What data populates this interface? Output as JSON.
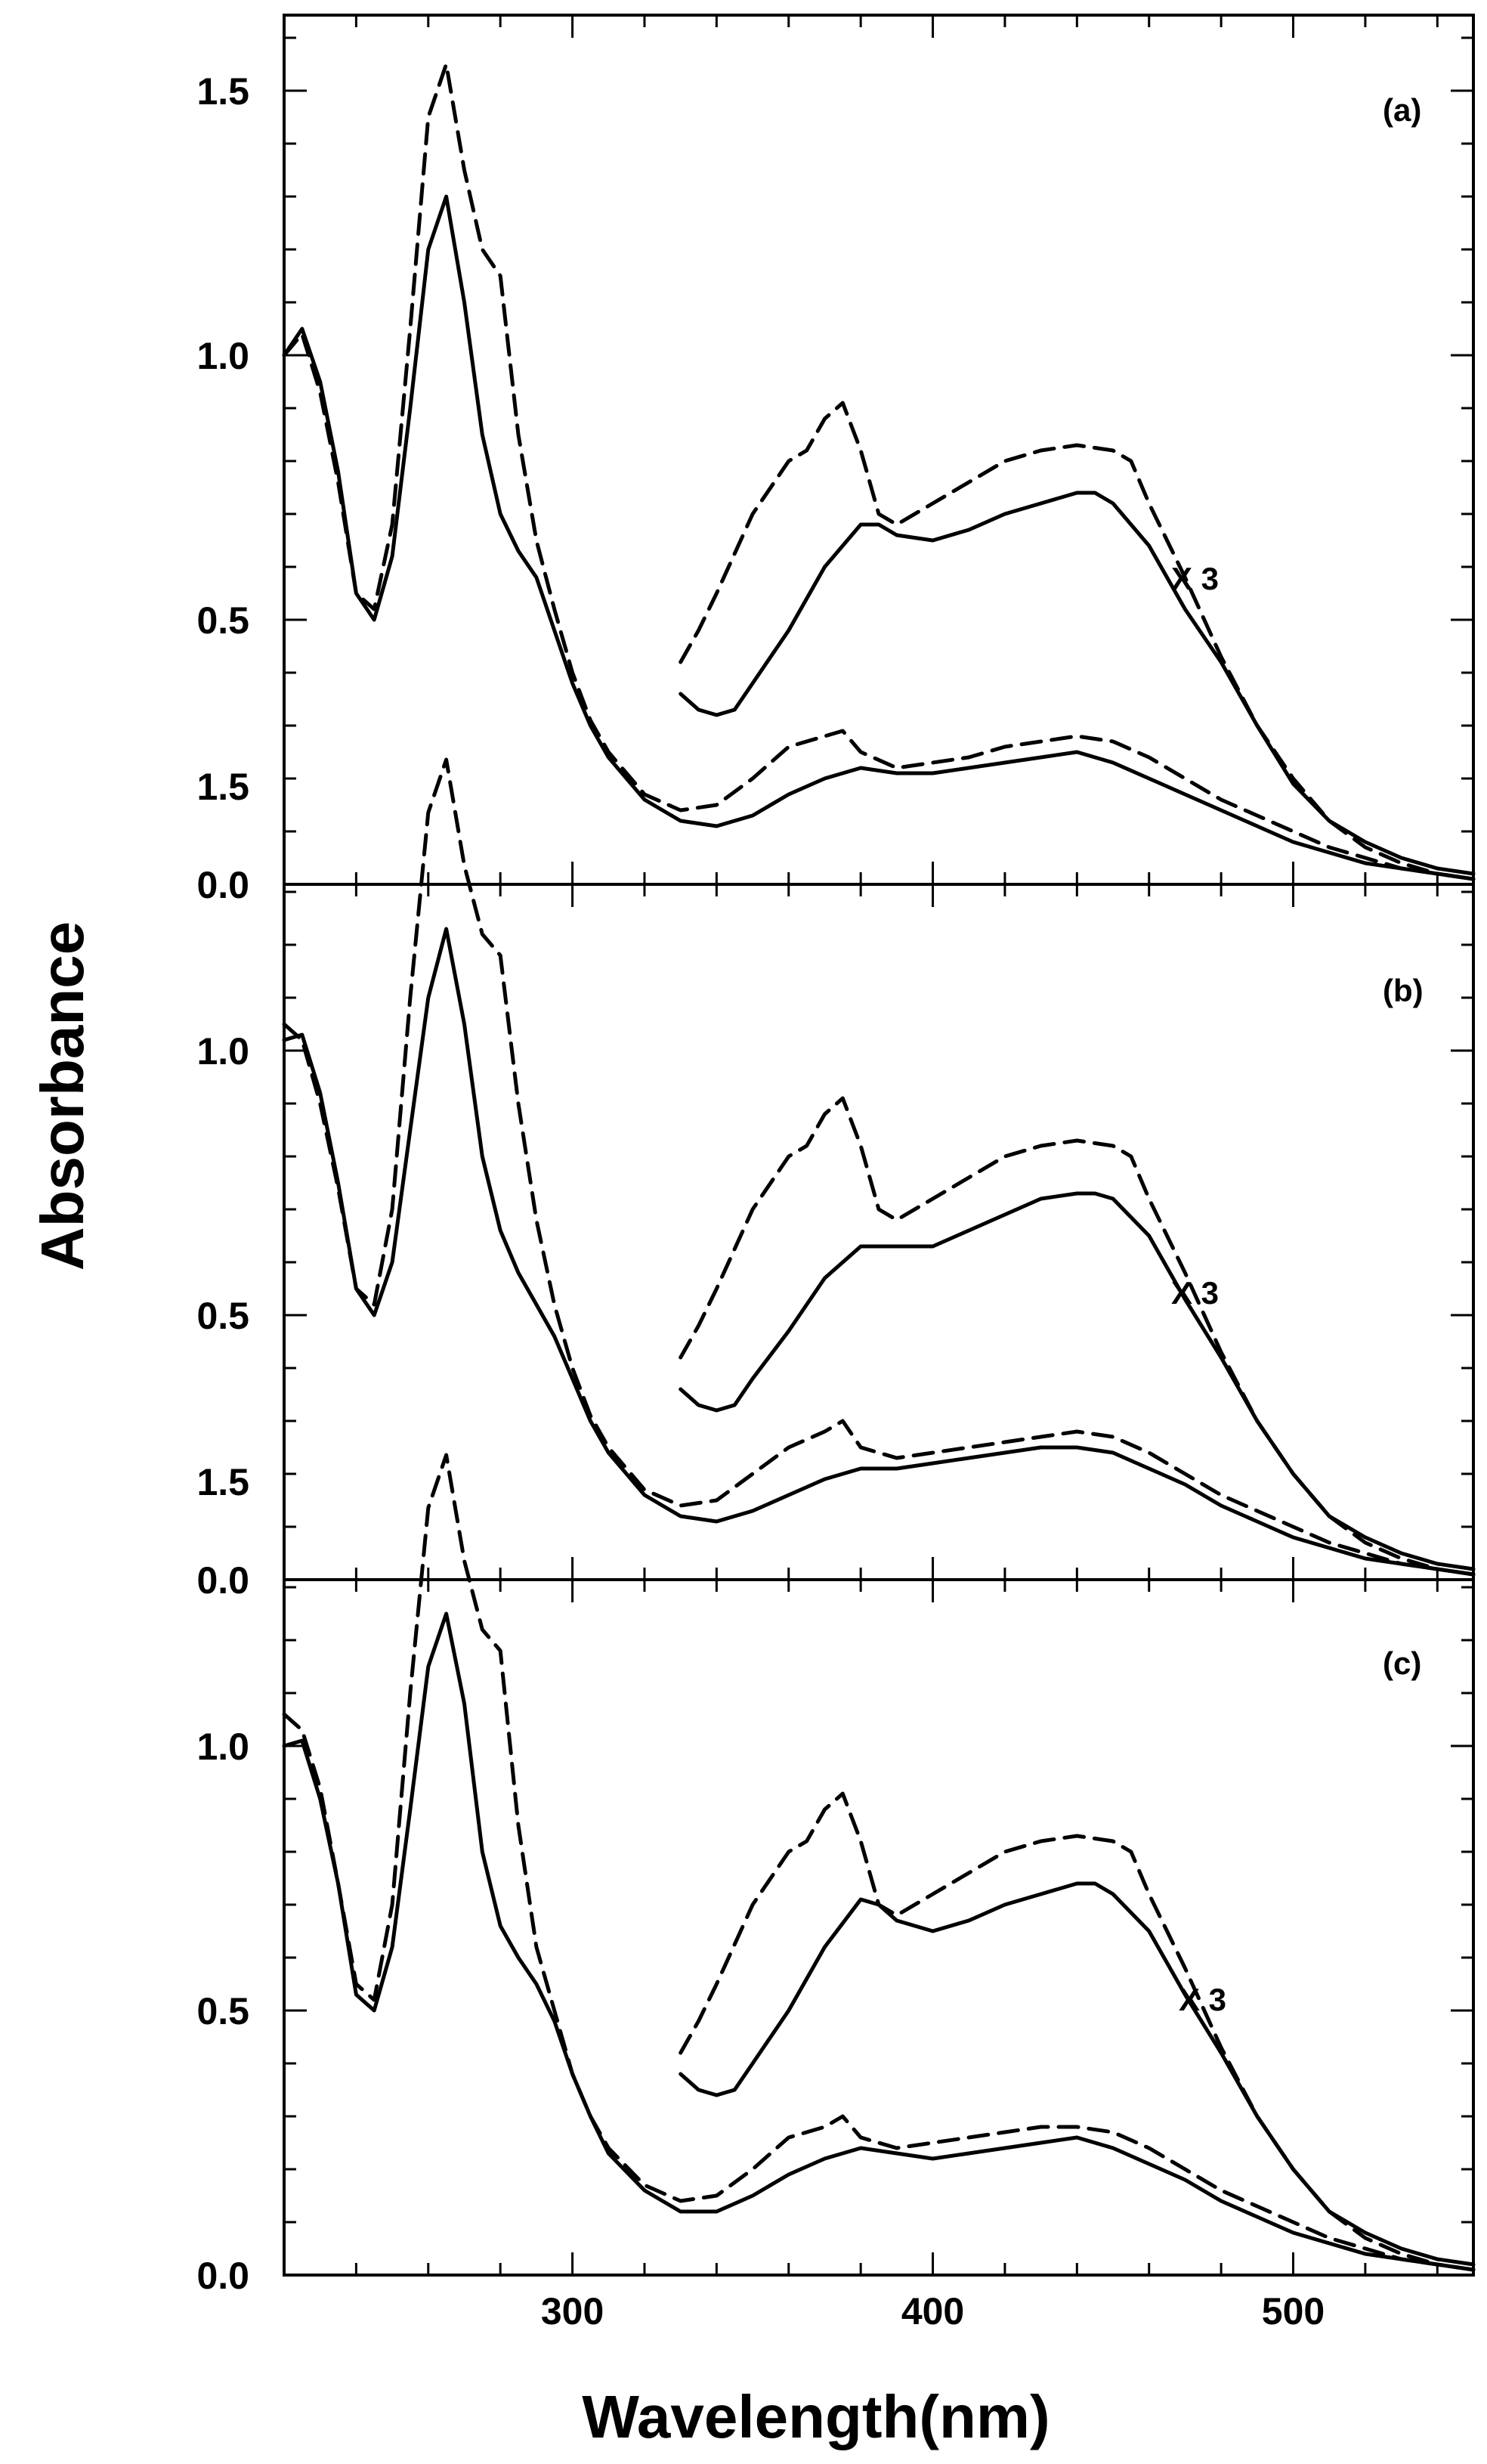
{
  "chart_data": {
    "type": "line",
    "xlabel": "Wavelength(nm)",
    "ylabel": "Absorbance",
    "xlim": [
      220,
      550
    ],
    "ylim": [
      0,
      1.65
    ],
    "x_ticks": [
      300,
      400,
      500
    ],
    "y_ticks": [
      "0.0",
      "0.5",
      "1.0",
      "1.5"
    ],
    "y_tick_values": [
      0.0,
      0.5,
      1.0,
      1.5
    ],
    "annotation": "X 3",
    "line_color": "#000000",
    "panels": [
      {
        "label": "(a)",
        "annotation": "X 3",
        "series": [
          {
            "name": "solid",
            "style": "solid",
            "x": [
              220,
              225,
              230,
              235,
              240,
              245,
              250,
              255,
              260,
              265,
              270,
              275,
              280,
              285,
              290,
              295,
              300,
              305,
              310,
              320,
              330,
              340,
              350,
              360,
              370,
              380,
              390,
              400,
              410,
              420,
              430,
              440,
              450,
              460,
              470,
              480,
              490,
              500,
              510,
              520,
              530,
              540,
              550
            ],
            "y": [
              1.0,
              1.05,
              0.95,
              0.78,
              0.55,
              0.5,
              0.62,
              0.9,
              1.2,
              1.3,
              1.1,
              0.85,
              0.7,
              0.63,
              0.58,
              0.48,
              0.38,
              0.3,
              0.24,
              0.16,
              0.12,
              0.11,
              0.13,
              0.17,
              0.2,
              0.22,
              0.21,
              0.21,
              0.22,
              0.23,
              0.24,
              0.25,
              0.23,
              0.2,
              0.17,
              0.14,
              0.11,
              0.08,
              0.06,
              0.04,
              0.03,
              0.02,
              0.01
            ]
          },
          {
            "name": "dashed",
            "style": "dashed",
            "x": [
              220,
              225,
              230,
              235,
              240,
              245,
              250,
              255,
              260,
              265,
              270,
              275,
              280,
              285,
              290,
              295,
              300,
              305,
              310,
              320,
              330,
              340,
              350,
              360,
              370,
              375,
              380,
              390,
              400,
              410,
              420,
              430,
              440,
              450,
              460,
              470,
              480,
              490,
              500,
              510,
              520,
              530,
              540,
              550
            ],
            "y": [
              1.0,
              1.04,
              0.93,
              0.76,
              0.55,
              0.52,
              0.68,
              1.05,
              1.45,
              1.55,
              1.35,
              1.2,
              1.15,
              0.85,
              0.65,
              0.52,
              0.4,
              0.31,
              0.25,
              0.17,
              0.14,
              0.15,
              0.2,
              0.26,
              0.28,
              0.29,
              0.25,
              0.22,
              0.23,
              0.24,
              0.26,
              0.27,
              0.28,
              0.27,
              0.24,
              0.2,
              0.16,
              0.13,
              0.1,
              0.07,
              0.05,
              0.03,
              0.02,
              0.01
            ]
          },
          {
            "name": "solid x3",
            "style": "solid",
            "x": [
              330,
              335,
              340,
              345,
              350,
              360,
              370,
              380,
              385,
              390,
              400,
              410,
              420,
              430,
              440,
              445,
              450,
              460,
              470,
              480,
              490,
              500,
              510,
              520,
              530,
              540,
              550
            ],
            "y": [
              0.36,
              0.33,
              0.32,
              0.33,
              0.38,
              0.48,
              0.6,
              0.68,
              0.68,
              0.66,
              0.65,
              0.67,
              0.7,
              0.72,
              0.74,
              0.74,
              0.72,
              0.64,
              0.52,
              0.42,
              0.3,
              0.19,
              0.12,
              0.08,
              0.05,
              0.03,
              0.02
            ]
          },
          {
            "name": "dashed x3",
            "style": "dashed",
            "x": [
              330,
              335,
              340,
              350,
              360,
              365,
              370,
              375,
              380,
              385,
              390,
              400,
              410,
              420,
              430,
              440,
              450,
              455,
              460,
              470,
              480,
              490,
              500,
              510,
              520,
              530,
              540,
              550
            ],
            "y": [
              0.42,
              0.48,
              0.55,
              0.7,
              0.8,
              0.82,
              0.88,
              0.91,
              0.82,
              0.7,
              0.68,
              0.72,
              0.76,
              0.8,
              0.82,
              0.83,
              0.82,
              0.8,
              0.72,
              0.58,
              0.43,
              0.3,
              0.2,
              0.12,
              0.07,
              0.04,
              0.02,
              0.01
            ]
          }
        ]
      },
      {
        "label": "(b)",
        "annotation": "X 3",
        "series": [
          {
            "name": "solid",
            "style": "solid",
            "x": [
              220,
              225,
              230,
              235,
              240,
              245,
              250,
              255,
              260,
              265,
              270,
              275,
              280,
              285,
              290,
              295,
              300,
              305,
              310,
              320,
              330,
              340,
              350,
              360,
              370,
              380,
              390,
              400,
              410,
              420,
              430,
              440,
              450,
              460,
              470,
              480,
              490,
              500,
              510,
              520,
              530,
              540,
              550
            ],
            "y": [
              1.02,
              1.03,
              0.92,
              0.75,
              0.55,
              0.5,
              0.6,
              0.85,
              1.1,
              1.23,
              1.05,
              0.8,
              0.66,
              0.58,
              0.52,
              0.46,
              0.38,
              0.3,
              0.24,
              0.16,
              0.12,
              0.11,
              0.13,
              0.16,
              0.19,
              0.21,
              0.21,
              0.22,
              0.23,
              0.24,
              0.25,
              0.25,
              0.24,
              0.21,
              0.18,
              0.14,
              0.11,
              0.08,
              0.06,
              0.04,
              0.03,
              0.02,
              0.01
            ]
          },
          {
            "name": "dashed",
            "style": "dashed",
            "x": [
              220,
              225,
              230,
              235,
              240,
              245,
              250,
              255,
              260,
              265,
              270,
              275,
              280,
              285,
              290,
              295,
              300,
              305,
              310,
              320,
              330,
              340,
              350,
              360,
              370,
              375,
              380,
              390,
              400,
              410,
              420,
              430,
              440,
              450,
              460,
              470,
              480,
              490,
              500,
              510,
              520,
              530,
              540,
              550
            ],
            "y": [
              1.05,
              1.02,
              0.9,
              0.74,
              0.55,
              0.52,
              0.7,
              1.1,
              1.45,
              1.55,
              1.35,
              1.22,
              1.18,
              0.9,
              0.68,
              0.52,
              0.4,
              0.31,
              0.25,
              0.17,
              0.14,
              0.15,
              0.2,
              0.25,
              0.28,
              0.3,
              0.25,
              0.23,
              0.24,
              0.25,
              0.26,
              0.27,
              0.28,
              0.27,
              0.24,
              0.2,
              0.16,
              0.13,
              0.1,
              0.07,
              0.05,
              0.03,
              0.02,
              0.01
            ]
          },
          {
            "name": "solid x3",
            "style": "solid",
            "x": [
              330,
              335,
              340,
              345,
              350,
              360,
              370,
              380,
              385,
              390,
              400,
              410,
              420,
              430,
              440,
              445,
              450,
              460,
              470,
              480,
              490,
              500,
              510,
              520,
              530,
              540,
              550
            ],
            "y": [
              0.36,
              0.33,
              0.32,
              0.33,
              0.38,
              0.47,
              0.57,
              0.63,
              0.63,
              0.63,
              0.63,
              0.66,
              0.69,
              0.72,
              0.73,
              0.73,
              0.72,
              0.65,
              0.53,
              0.42,
              0.3,
              0.2,
              0.12,
              0.08,
              0.05,
              0.03,
              0.02
            ]
          },
          {
            "name": "dashed x3",
            "style": "dashed",
            "x": [
              330,
              335,
              340,
              350,
              360,
              365,
              370,
              375,
              380,
              385,
              390,
              400,
              410,
              420,
              430,
              440,
              450,
              455,
              460,
              470,
              480,
              490,
              500,
              510,
              520,
              530,
              540,
              550
            ],
            "y": [
              0.42,
              0.48,
              0.55,
              0.7,
              0.8,
              0.82,
              0.88,
              0.91,
              0.82,
              0.7,
              0.68,
              0.72,
              0.76,
              0.8,
              0.82,
              0.83,
              0.82,
              0.8,
              0.72,
              0.58,
              0.43,
              0.3,
              0.2,
              0.12,
              0.07,
              0.04,
              0.02,
              0.01
            ]
          }
        ]
      },
      {
        "label": "(c)",
        "annotation": "X 3",
        "series": [
          {
            "name": "solid",
            "style": "solid",
            "x": [
              220,
              225,
              230,
              235,
              240,
              245,
              250,
              255,
              260,
              265,
              270,
              275,
              280,
              285,
              290,
              295,
              300,
              305,
              310,
              320,
              330,
              340,
              350,
              360,
              370,
              380,
              390,
              400,
              410,
              420,
              430,
              440,
              450,
              460,
              470,
              480,
              490,
              500,
              510,
              520,
              530,
              540,
              550
            ],
            "y": [
              1.0,
              1.01,
              0.9,
              0.74,
              0.53,
              0.5,
              0.62,
              0.88,
              1.15,
              1.25,
              1.08,
              0.8,
              0.66,
              0.6,
              0.55,
              0.48,
              0.38,
              0.3,
              0.23,
              0.16,
              0.12,
              0.12,
              0.15,
              0.19,
              0.22,
              0.24,
              0.23,
              0.22,
              0.23,
              0.24,
              0.25,
              0.26,
              0.24,
              0.21,
              0.18,
              0.14,
              0.11,
              0.08,
              0.06,
              0.04,
              0.03,
              0.02,
              0.01
            ]
          },
          {
            "name": "dashed",
            "style": "dashed",
            "x": [
              220,
              225,
              230,
              235,
              240,
              245,
              250,
              255,
              260,
              265,
              270,
              275,
              280,
              285,
              290,
              295,
              300,
              305,
              310,
              320,
              330,
              340,
              350,
              360,
              370,
              375,
              380,
              390,
              400,
              410,
              420,
              430,
              440,
              450,
              460,
              470,
              480,
              490,
              500,
              510,
              520,
              530,
              540,
              550
            ],
            "y": [
              1.06,
              1.03,
              0.92,
              0.74,
              0.55,
              0.52,
              0.7,
              1.1,
              1.45,
              1.55,
              1.35,
              1.22,
              1.18,
              0.85,
              0.62,
              0.5,
              0.38,
              0.3,
              0.24,
              0.17,
              0.14,
              0.15,
              0.2,
              0.26,
              0.28,
              0.3,
              0.26,
              0.24,
              0.25,
              0.26,
              0.27,
              0.28,
              0.28,
              0.27,
              0.24,
              0.2,
              0.16,
              0.13,
              0.1,
              0.07,
              0.05,
              0.03,
              0.02,
              0.01
            ]
          },
          {
            "name": "solid x3",
            "style": "solid",
            "x": [
              330,
              335,
              340,
              345,
              350,
              360,
              370,
              380,
              385,
              390,
              400,
              410,
              420,
              430,
              440,
              445,
              450,
              460,
              470,
              480,
              490,
              500,
              510,
              520,
              530,
              540,
              550
            ],
            "y": [
              0.38,
              0.35,
              0.34,
              0.35,
              0.4,
              0.5,
              0.62,
              0.71,
              0.7,
              0.67,
              0.65,
              0.67,
              0.7,
              0.72,
              0.74,
              0.74,
              0.72,
              0.65,
              0.53,
              0.42,
              0.3,
              0.2,
              0.12,
              0.08,
              0.05,
              0.03,
              0.02
            ]
          },
          {
            "name": "dashed x3",
            "style": "dashed",
            "x": [
              330,
              335,
              340,
              350,
              360,
              365,
              370,
              375,
              380,
              385,
              390,
              400,
              410,
              420,
              430,
              440,
              450,
              455,
              460,
              470,
              480,
              490,
              500,
              510,
              520,
              530,
              540,
              550
            ],
            "y": [
              0.42,
              0.48,
              0.55,
              0.7,
              0.8,
              0.82,
              0.88,
              0.91,
              0.82,
              0.7,
              0.68,
              0.72,
              0.76,
              0.8,
              0.82,
              0.83,
              0.82,
              0.8,
              0.72,
              0.58,
              0.43,
              0.3,
              0.2,
              0.12,
              0.07,
              0.04,
              0.02,
              0.01
            ]
          }
        ]
      }
    ]
  }
}
